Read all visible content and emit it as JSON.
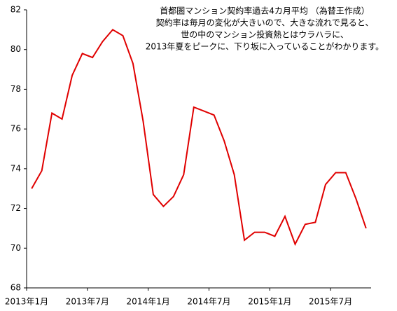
{
  "chart_data": {
    "type": "line",
    "title": "首都圏マンション契約率過去4カ月平均 （為替王作成）",
    "annotations": [
      "契約率は毎月の変化が大きいので、大きな流れで見ると、",
      "世の中のマンション投資熱とはウラハラに、",
      "2013年夏をピークに、下り坂に入っていることがわかります。"
    ],
    "categories": [
      "2013年1月",
      null,
      null,
      null,
      null,
      null,
      "2013年7月",
      null,
      null,
      null,
      null,
      null,
      "2014年1月",
      null,
      null,
      null,
      null,
      null,
      "2014年7月",
      null,
      null,
      null,
      null,
      null,
      "2015年1月",
      null,
      null,
      null,
      null,
      null,
      "2015年7月",
      null,
      null,
      null
    ],
    "series": [
      {
        "color": "#e00000",
        "values": [
          73.0,
          73.9,
          76.8,
          76.5,
          78.7,
          79.8,
          79.6,
          80.4,
          81.0,
          80.7,
          79.3,
          76.4,
          72.7,
          72.1,
          72.6,
          73.7,
          77.1,
          76.9,
          76.7,
          75.4,
          73.7,
          70.4,
          70.8,
          70.8,
          70.6,
          71.6,
          70.2,
          71.2,
          71.3,
          73.2,
          73.8,
          73.8,
          72.5,
          71.0
        ]
      }
    ],
    "ylim": [
      68,
      82
    ],
    "yticks": [
      68,
      70,
      72,
      74,
      76,
      78,
      80,
      82
    ],
    "grid": false
  }
}
